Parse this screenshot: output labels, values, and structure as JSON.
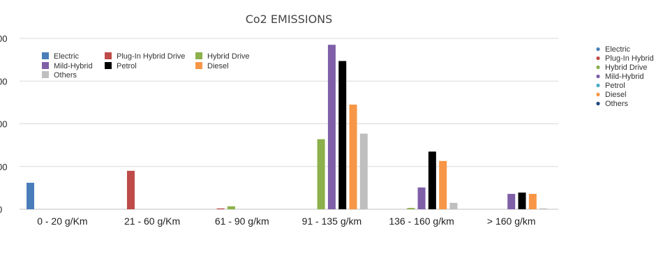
{
  "chart_data": {
    "type": "bar",
    "title": "Co2 EMISSIONS",
    "xlabel": "",
    "ylabel": "",
    "categories": [
      "0 - 20 g/Km",
      "21 - 60 g/Km",
      "61 - 90 g/km",
      "91 - 135 g/km",
      "136 - 160 g/km",
      "> 160 g/km"
    ],
    "ytick_labels": [
      "0",
      "00",
      "00",
      "00",
      "00"
    ],
    "ylim": [
      0,
      4
    ],
    "grid": true,
    "series": [
      {
        "name": "Electric",
        "color": "#4A7EBB",
        "values": [
          0.62,
          0,
          0,
          0,
          0,
          0
        ]
      },
      {
        "name": "Plug-In Hybrid Drive",
        "color": "#BE4B48",
        "values": [
          0,
          0.9,
          0.02,
          0,
          0,
          0
        ]
      },
      {
        "name": "Hybrid Drive",
        "color": "#8CB04A",
        "values": [
          0,
          0,
          0.07,
          1.64,
          0.03,
          0
        ]
      },
      {
        "name": "Mild-Hybrid",
        "color": "#7F5FA8",
        "values": [
          0,
          0,
          0,
          3.85,
          0.51,
          0.36
        ]
      },
      {
        "name": "Petrol",
        "color": "#000000",
        "values": [
          0,
          0,
          0,
          3.47,
          1.35,
          0.39
        ]
      },
      {
        "name": "Diesel",
        "color": "#F79646",
        "values": [
          0,
          0,
          0,
          2.45,
          1.13,
          0.36
        ]
      },
      {
        "name": "Others",
        "color": "#BFBFBF",
        "values": [
          0,
          0,
          0,
          1.77,
          0.15,
          0.02
        ]
      }
    ],
    "legend_inner": {
      "placement": "top-left",
      "items": [
        "Electric",
        "Plug-In Hybrid Drive",
        "Hybrid Drive",
        "Mild-Hybrid",
        "Petrol",
        "Diesel",
        "Others"
      ]
    },
    "legend_outer": {
      "placement": "right",
      "items": [
        {
          "label": "Electric",
          "color": "#4A7EBB"
        },
        {
          "label": "Plug-In Hybrid",
          "color": "#BE4B48"
        },
        {
          "label": "Hybrid Drive",
          "color": "#8CB04A"
        },
        {
          "label": "Mild-Hybrid",
          "color": "#7F5FA8"
        },
        {
          "label": "Petrol",
          "color": "#4BACC6"
        },
        {
          "label": "Diesel",
          "color": "#F79646"
        },
        {
          "label": "Others",
          "color": "#1F497D"
        }
      ]
    }
  }
}
